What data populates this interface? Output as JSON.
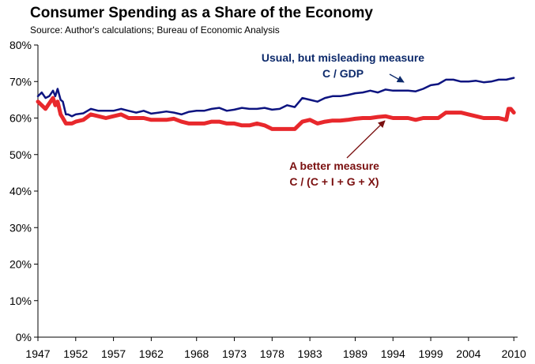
{
  "chart_data": {
    "type": "line",
    "title": "Consumer Spending as a Share of the Economy",
    "subtitle": "Source: Author's calculations; Bureau of Economic Analysis",
    "xlabel": "",
    "ylabel": "",
    "x_tick_labels": [
      "1947",
      "1952",
      "1957",
      "1962",
      "1968",
      "1973",
      "1978",
      "1983",
      "1989",
      "1994",
      "1999",
      "2004",
      "2010"
    ],
    "x_tick_years": [
      1947,
      1952,
      1957,
      1962,
      1968,
      1973,
      1978,
      1983,
      1989,
      1994,
      1999,
      2004,
      2010
    ],
    "xlim": [
      1947,
      2010.5
    ],
    "y_tick_labels": [
      "0%",
      "10%",
      "20%",
      "30%",
      "40%",
      "50%",
      "60%",
      "70%",
      "80%"
    ],
    "ylim": [
      0,
      80
    ],
    "grid": false,
    "series": [
      {
        "color": "#0d1480",
        "x": [
          1947,
          1947.5,
          1948,
          1948.5,
          1949,
          1949.3,
          1949.6,
          1950,
          1950.3,
          1950.7,
          1951,
          1951.5,
          1952,
          1953,
          1954,
          1955,
          1956,
          1957,
          1958,
          1959,
          1960,
          1961,
          1962,
          1963,
          1964,
          1965,
          1966,
          1967,
          1968,
          1969,
          1970,
          1971,
          1972,
          1973,
          1974,
          1975,
          1976,
          1977,
          1978,
          1979,
          1980,
          1981,
          1982,
          1983,
          1984,
          1985,
          1986,
          1987,
          1988,
          1989,
          1990,
          1991,
          1992,
          1993,
          1994,
          1995,
          1996,
          1997,
          1998,
          1999,
          2000,
          2001,
          2002,
          2003,
          2004,
          2005,
          2006,
          2007,
          2008,
          2009,
          2010
        ],
        "values": [
          66,
          67,
          65.5,
          66,
          67.5,
          66,
          68,
          65,
          64.5,
          61,
          61,
          60.5,
          61,
          61.3,
          62.5,
          62,
          62,
          62,
          62.5,
          62,
          61.5,
          62,
          61.2,
          61.5,
          61.8,
          61.5,
          61,
          61.7,
          62,
          62,
          62.5,
          62.8,
          62,
          62.3,
          62.8,
          62.5,
          62.5,
          62.8,
          62.3,
          62.5,
          63.5,
          63,
          65.5,
          65,
          64.5,
          65.5,
          66,
          66,
          66.3,
          66.8,
          67,
          67.5,
          67,
          67.8,
          67.5,
          67.5,
          67.5,
          67.3,
          68,
          69,
          69.3,
          70.5,
          70.5,
          70,
          70,
          70.2,
          69.8,
          70,
          70.5,
          70.5,
          71
        ]
      },
      {
        "color": "#e8282c",
        "x": [
          1947,
          1947.5,
          1948,
          1948.5,
          1949,
          1949.3,
          1949.6,
          1950,
          1950.3,
          1950.7,
          1951,
          1951.5,
          1952,
          1953,
          1954,
          1955,
          1956,
          1957,
          1958,
          1959,
          1960,
          1961,
          1962,
          1963,
          1964,
          1965,
          1966,
          1967,
          1968,
          1969,
          1970,
          1971,
          1972,
          1973,
          1974,
          1975,
          1976,
          1977,
          1978,
          1979,
          1980,
          1981,
          1982,
          1983,
          1984,
          1985,
          1986,
          1987,
          1988,
          1989,
          1990,
          1991,
          1992,
          1993,
          1994,
          1995,
          1996,
          1997,
          1998,
          1999,
          2000,
          2001,
          2002,
          2003,
          2004,
          2005,
          2006,
          2007,
          2008,
          2009,
          2009.3,
          2009.6,
          2010
        ],
        "values": [
          64.5,
          63.5,
          62.5,
          64,
          65.5,
          63.5,
          64.5,
          61,
          60,
          58.5,
          58.5,
          58.5,
          59,
          59.5,
          61,
          60.5,
          60,
          60.5,
          61,
          60,
          60,
          60,
          59.5,
          59.5,
          59.5,
          59.8,
          59,
          58.5,
          58.5,
          58.5,
          59,
          59,
          58.5,
          58.5,
          58,
          58,
          58.5,
          58,
          57,
          57,
          57,
          57,
          59,
          59.5,
          58.5,
          59,
          59.3,
          59.3,
          59.5,
          59.8,
          60,
          60,
          60.3,
          60.5,
          60,
          60,
          60,
          59.5,
          60,
          60,
          60,
          61.5,
          61.5,
          61.5,
          61,
          60.5,
          60,
          60,
          60,
          59.5,
          62.5,
          62.5,
          61.5
        ]
      }
    ],
    "annotations": [
      {
        "lines": [
          "Usual, but misleading measure",
          "C / GDP"
        ],
        "color": "#0d2a6b"
      },
      {
        "lines": [
          "A better measure",
          "C / (C + I + G + X)"
        ],
        "color": "#7a1010"
      }
    ]
  }
}
